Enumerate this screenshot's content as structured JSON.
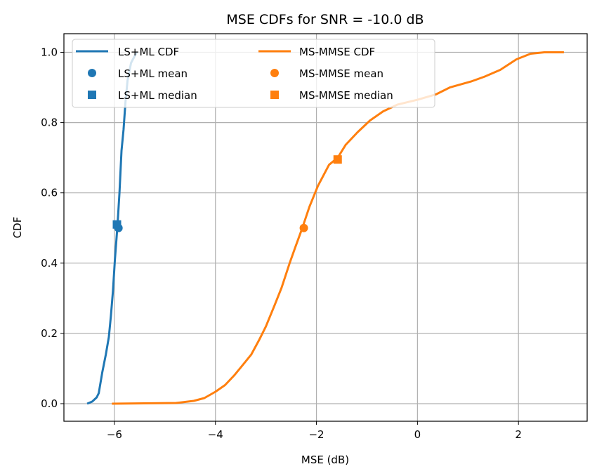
{
  "chart_data": {
    "type": "line",
    "title": "MSE CDFs for SNR = -10.0 dB",
    "xlabel": "MSE (dB)",
    "ylabel": "CDF",
    "xlim": [
      -7.0,
      3.36
    ],
    "ylim": [
      -0.05,
      1.053
    ],
    "xticks": [
      -6,
      -4,
      -2,
      0,
      2
    ],
    "xtick_labels": [
      "−6",
      "−4",
      "−2",
      "0",
      "2"
    ],
    "yticks": [
      0.0,
      0.2,
      0.4,
      0.6,
      0.8,
      1.0
    ],
    "ytick_labels": [
      "0.0",
      "0.2",
      "0.4",
      "0.6",
      "0.8",
      "1.0"
    ],
    "grid": true,
    "legend_placement": "upper-left",
    "series": [
      {
        "name": "LS+ML CDF",
        "color": "#1f77b4",
        "x": [
          -6.54,
          -6.44,
          -6.35,
          -6.31,
          -6.24,
          -6.17,
          -6.11,
          -6.07,
          -6.03,
          -5.99,
          -5.94,
          -5.9,
          -5.86,
          -5.82,
          -5.78,
          -5.74,
          -5.67,
          -5.56
        ],
        "y": [
          0.0,
          0.006,
          0.018,
          0.03,
          0.09,
          0.14,
          0.19,
          0.25,
          0.32,
          0.41,
          0.505,
          0.6,
          0.72,
          0.78,
          0.86,
          0.92,
          0.97,
          1.0
        ]
      },
      {
        "name": "MS-MMSE CDF",
        "color": "#ff7f0e",
        "x": [
          -6.05,
          -4.78,
          -4.43,
          -4.22,
          -4.0,
          -3.81,
          -3.63,
          -3.46,
          -3.29,
          -3.14,
          -3.0,
          -2.83,
          -2.69,
          -2.53,
          -2.42,
          -2.28,
          -2.14,
          -1.97,
          -1.75,
          -1.58,
          -1.42,
          -1.19,
          -0.94,
          -0.68,
          -0.4,
          0.0,
          0.36,
          0.64,
          1.06,
          1.33,
          1.64,
          1.96,
          2.24,
          2.51,
          2.9
        ],
        "y": [
          0.0,
          0.002,
          0.008,
          0.016,
          0.034,
          0.053,
          0.08,
          0.11,
          0.14,
          0.18,
          0.22,
          0.28,
          0.33,
          0.4,
          0.445,
          0.5,
          0.56,
          0.62,
          0.68,
          0.7,
          0.737,
          0.772,
          0.806,
          0.832,
          0.851,
          0.865,
          0.88,
          0.9,
          0.917,
          0.931,
          0.95,
          0.98,
          0.996,
          1.0,
          1.0
        ]
      }
    ],
    "markers": [
      {
        "name": "LS+ML mean",
        "shape": "circle",
        "color": "#1f77b4",
        "x": -5.92,
        "y": 0.5
      },
      {
        "name": "LS+ML median",
        "shape": "square",
        "color": "#1f77b4",
        "x": -5.95,
        "y": 0.51
      },
      {
        "name": "MS-MMSE mean",
        "shape": "circle",
        "color": "#ff7f0e",
        "x": -2.25,
        "y": 0.5
      },
      {
        "name": "MS-MMSE median",
        "shape": "square",
        "color": "#ff7f0e",
        "x": -1.58,
        "y": 0.695
      }
    ],
    "legend": [
      {
        "label": "LS+ML CDF",
        "kind": "line",
        "color": "#1f77b4"
      },
      {
        "label": "LS+ML mean",
        "kind": "circle",
        "color": "#1f77b4"
      },
      {
        "label": "LS+ML median",
        "kind": "square",
        "color": "#1f77b4"
      },
      {
        "label": "MS-MMSE CDF",
        "kind": "line",
        "color": "#ff7f0e"
      },
      {
        "label": "MS-MMSE mean",
        "kind": "circle",
        "color": "#ff7f0e"
      },
      {
        "label": "MS-MMSE median",
        "kind": "square",
        "color": "#ff7f0e"
      }
    ]
  }
}
